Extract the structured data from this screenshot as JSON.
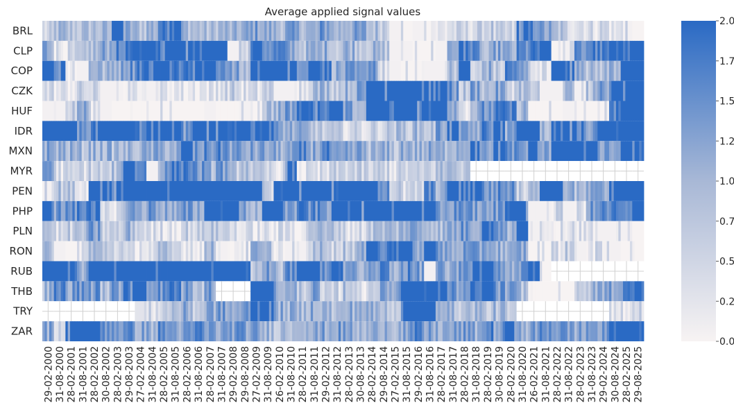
{
  "chart_data": {
    "type": "heatmap",
    "title": "Average applied signal values",
    "xlabel": "",
    "ylabel": "",
    "rows": [
      "BRL",
      "CLP",
      "COP",
      "CZK",
      "HUF",
      "IDR",
      "MXN",
      "MYR",
      "PEN",
      "PHP",
      "PLN",
      "RON",
      "RUB",
      "THB",
      "TRY",
      "ZAR"
    ],
    "x_tick_labels": [
      "29-02-2000",
      "31-08-2000",
      "28-02-2001",
      "31-08-2001",
      "28-02-2002",
      "30-08-2002",
      "28-02-2003",
      "29-08-2003",
      "27-02-2004",
      "31-08-2004",
      "28-02-2005",
      "31-08-2005",
      "28-02-2006",
      "31-08-2006",
      "28-02-2007",
      "31-08-2007",
      "29-02-2008",
      "29-08-2008",
      "27-02-2009",
      "31-08-2009",
      "26-02-2010",
      "31-08-2010",
      "28-02-2011",
      "31-08-2011",
      "29-02-2012",
      "31-08-2012",
      "28-02-2013",
      "30-08-2013",
      "28-02-2014",
      "29-08-2014",
      "27-02-2015",
      "31-08-2015",
      "29-02-2016",
      "31-08-2016",
      "28-02-2017",
      "31-08-2017",
      "28-02-2018",
      "31-08-2018",
      "28-02-2019",
      "30-08-2019",
      "28-02-2020",
      "31-08-2020",
      "26-02-2021",
      "31-08-2021",
      "28-02-2022",
      "31-08-2022",
      "28-02-2023",
      "31-08-2023",
      "29-02-2024",
      "30-08-2024",
      "28-02-2025",
      "29-08-2025"
    ],
    "period_values": {
      "BRL": [
        0.4,
        0.9,
        0.8,
        0.8,
        0.9,
        0.9,
        1.9,
        1.1,
        0.9,
        1.1,
        1.8,
        1.9,
        1.0,
        0.9,
        0.8,
        1.0,
        0.9,
        1.1,
        1.3,
        1.1,
        1.0,
        1.2,
        1.1,
        1.0,
        1.4,
        1.0,
        1.2,
        1.2,
        0.9,
        0.8,
        0.1,
        0.05,
        0.1,
        0.2,
        0.2,
        0.4,
        0.4,
        0.5,
        0.7,
        0.4,
        0.4,
        1.9,
        1.6,
        1.2,
        0.8,
        0.5,
        0.5,
        0.4,
        0.5,
        0.2,
        0.1,
        0.05
      ],
      "CLP": [
        1.3,
        0.3,
        0.3,
        0.5,
        0.9,
        1.2,
        1.5,
        1.8,
        1.9,
        1.9,
        1.9,
        1.9,
        1.9,
        1.9,
        1.9,
        1.9,
        0.1,
        0.6,
        1.9,
        1.6,
        1.6,
        1.2,
        0.9,
        1.0,
        1.1,
        0.8,
        1.1,
        0.9,
        0.9,
        0.8,
        0.1,
        0.1,
        0.05,
        0.05,
        0.1,
        1.2,
        1.9,
        1.4,
        0.7,
        1.2,
        1.0,
        1.5,
        1.7,
        1.9,
        0.05,
        0.1,
        1.4,
        1.7,
        1.6,
        1.9,
        1.8,
        1.9
      ],
      "COP": [
        1.9,
        1.9,
        0.3,
        0.1,
        1.2,
        0.9,
        1.2,
        1.5,
        1.8,
        1.9,
        1.9,
        1.9,
        1.7,
        1.9,
        1.9,
        1.7,
        1.2,
        0.9,
        1.9,
        1.9,
        1.9,
        1.9,
        1.7,
        1.9,
        1.8,
        1.1,
        1.2,
        1.1,
        1.6,
        0.4,
        0.1,
        0.05,
        0.05,
        0.1,
        0.1,
        0.9,
        1.9,
        0.4,
        1.1,
        0.6,
        1.7,
        1.2,
        0.5,
        0.1,
        1.9,
        1.9,
        1.4,
        0.8,
        0.9,
        1.1,
        1.9,
        1.9
      ],
      "CZK": [
        0.4,
        0.2,
        0.3,
        0.5,
        0.4,
        0.1,
        0.1,
        0.2,
        0.1,
        0.1,
        0.2,
        0.3,
        0.2,
        0.3,
        0.2,
        0.5,
        0.6,
        0.3,
        0.3,
        0.6,
        0.1,
        0.1,
        0.4,
        0.9,
        1.0,
        0.8,
        1.0,
        1.2,
        1.9,
        1.9,
        1.9,
        1.9,
        1.9,
        1.9,
        1.9,
        1.4,
        0.7,
        1.3,
        0.9,
        1.2,
        0.6,
        0.9,
        0.6,
        0.1,
        0.1,
        0.9,
        0.1,
        0.8,
        1.4,
        1.9,
        1.9,
        1.9
      ],
      "HUF": [
        0.1,
        0.1,
        0.6,
        1.2,
        0.3,
        0.1,
        0.05,
        0.05,
        0.05,
        0.05,
        0.05,
        0.05,
        0.05,
        0.05,
        0.1,
        0.05,
        0.05,
        0.1,
        0.2,
        0.9,
        1.1,
        1.3,
        1.9,
        1.9,
        1.8,
        1.9,
        1.2,
        1.0,
        1.9,
        1.9,
        1.9,
        1.9,
        1.9,
        1.9,
        1.9,
        1.4,
        0.4,
        1.0,
        1.4,
        1.7,
        1.6,
        1.0,
        0.05,
        0.05,
        0.05,
        0.1,
        0.05,
        0.05,
        0.2,
        1.8,
        1.9,
        1.9
      ],
      "IDR": [
        1.9,
        1.9,
        1.9,
        1.5,
        1.9,
        1.9,
        1.9,
        1.9,
        1.6,
        1.9,
        1.9,
        1.9,
        1.4,
        1.9,
        1.9,
        1.9,
        1.7,
        1.9,
        1.9,
        1.9,
        1.2,
        1.1,
        1.0,
        0.8,
        0.6,
        0.5,
        0.5,
        0.4,
        0.5,
        0.6,
        0.8,
        0.8,
        0.9,
        0.8,
        1.3,
        1.9,
        1.1,
        1.2,
        1.6,
        1.9,
        1.2,
        1.9,
        1.9,
        0.9,
        1.9,
        1.9,
        1.8,
        1.4,
        1.9,
        1.9,
        1.9,
        1.9
      ],
      "MXN": [
        1.2,
        1.1,
        1.0,
        0.9,
        1.0,
        1.0,
        0.9,
        0.9,
        1.0,
        1.1,
        1.1,
        1.1,
        1.9,
        1.4,
        1.5,
        1.6,
        1.3,
        1.2,
        1.2,
        1.2,
        1.1,
        1.1,
        1.5,
        1.2,
        1.6,
        1.0,
        1.1,
        1.2,
        0.9,
        1.0,
        0.8,
        1.2,
        1.0,
        1.1,
        1.0,
        1.2,
        1.3,
        1.9,
        1.1,
        1.9,
        1.5,
        1.3,
        1.9,
        1.1,
        1.9,
        1.9,
        1.9,
        1.9,
        1.4,
        1.3,
        1.9,
        1.8
      ],
      "MYR": [
        1.5,
        0.4,
        0.3,
        0.5,
        0.6,
        0.5,
        0.8,
        1.9,
        1.7,
        0.1,
        1.3,
        1.8,
        1.8,
        1.4,
        1.0,
        1.4,
        0.7,
        1.0,
        0.5,
        0.4,
        0.3,
        1.9,
        0.2,
        0.2,
        0.3,
        0.5,
        0.6,
        0.5,
        0.4,
        0.6,
        0.4,
        0.5,
        0.4,
        0.6,
        0.8,
        1.0,
        0.7,
        null,
        null,
        null,
        null,
        null,
        null,
        null,
        null,
        null,
        null,
        null,
        null,
        null,
        null,
        null
      ],
      "PEN": [
        0.1,
        0.8,
        0.7,
        0.3,
        1.9,
        1.9,
        1.9,
        1.9,
        1.9,
        1.9,
        1.9,
        1.9,
        1.9,
        1.9,
        1.9,
        1.9,
        1.9,
        1.9,
        1.9,
        0.6,
        1.9,
        1.9,
        1.9,
        1.9,
        1.9,
        1.9,
        1.9,
        1.9,
        1.9,
        1.7,
        0.7,
        0.3,
        0.5,
        1.5,
        1.1,
        1.9,
        1.6,
        1.9,
        1.4,
        1.5,
        1.5,
        0.6,
        1.2,
        1.9,
        1.9,
        1.2,
        0.8,
        1.1,
        1.1,
        1.9,
        1.9,
        1.9
      ],
      "PHP": [
        1.9,
        1.4,
        1.5,
        1.6,
        1.9,
        0.2,
        0.4,
        1.3,
        1.2,
        1.4,
        1.2,
        1.0,
        1.3,
        1.2,
        1.9,
        1.9,
        1.9,
        1.2,
        1.0,
        1.9,
        1.9,
        1.3,
        1.7,
        1.5,
        1.4,
        1.9,
        1.9,
        1.9,
        1.9,
        1.9,
        1.9,
        1.9,
        1.9,
        1.9,
        1.2,
        1.4,
        1.6,
        1.3,
        1.1,
        1.4,
        1.9,
        1.9,
        0.1,
        0.1,
        0.4,
        0.1,
        0.3,
        1.3,
        1.5,
        1.6,
        1.4,
        1.9
      ],
      "PLN": [
        0.9,
        0.4,
        0.6,
        0.8,
        1.3,
        0.6,
        0.5,
        1.0,
        0.6,
        0.3,
        0.4,
        0.3,
        0.6,
        0.5,
        0.8,
        0.6,
        0.5,
        0.2,
        0.3,
        0.2,
        0.3,
        0.4,
        0.3,
        1.0,
        0.8,
        0.8,
        0.4,
        0.4,
        0.8,
        0.9,
        0.9,
        1.2,
        1.2,
        1.1,
        0.9,
        1.2,
        1.4,
        1.3,
        1.9,
        1.6,
        1.0,
        1.9,
        0.1,
        0.4,
        0.2,
        0.5,
        0.3,
        0.2,
        0.1,
        0.1,
        0.1,
        0.05
      ],
      "RON": [
        0.8,
        0.1,
        0.05,
        0.4,
        0.9,
        0.8,
        0.6,
        0.2,
        0.4,
        0.3,
        0.7,
        0.5,
        0.4,
        0.3,
        0.9,
        0.1,
        0.2,
        0.3,
        1.0,
        0.8,
        0.2,
        0.1,
        0.1,
        0.7,
        1.0,
        0.6,
        0.8,
        1.0,
        1.9,
        1.6,
        1.9,
        1.9,
        1.2,
        1.9,
        1.3,
        1.1,
        1.3,
        1.2,
        1.4,
        1.1,
        0.9,
        1.2,
        0.05,
        0.05,
        0.4,
        0.6,
        0.1,
        0.4,
        0.2,
        0.1,
        0.05,
        0.05
      ],
      "RUB": [
        1.9,
        1.9,
        1.9,
        1.2,
        1.9,
        1.9,
        1.9,
        1.9,
        1.9,
        1.9,
        1.9,
        1.9,
        1.9,
        1.9,
        1.9,
        1.9,
        1.9,
        1.9,
        0.8,
        1.4,
        0.9,
        1.6,
        1.9,
        1.9,
        1.4,
        1.9,
        1.4,
        1.0,
        1.2,
        1.6,
        1.1,
        1.5,
        1.3,
        0.1,
        1.3,
        1.0,
        1.6,
        1.9,
        1.9,
        1.3,
        1.1,
        1.5,
        1.9,
        0.05,
        null,
        null,
        null,
        null,
        null,
        null,
        null,
        null
      ],
      "THB": [
        1.0,
        1.6,
        1.3,
        1.5,
        1.4,
        0.9,
        1.3,
        1.9,
        1.9,
        1.2,
        1.5,
        1.7,
        1.3,
        0.8,
        1.3,
        null,
        null,
        null,
        1.9,
        1.9,
        1.2,
        1.0,
        0.8,
        1.2,
        0.3,
        0.5,
        0.9,
        0.3,
        0.7,
        1.1,
        1.3,
        1.9,
        1.9,
        1.9,
        1.9,
        1.4,
        1.3,
        1.6,
        1.9,
        1.4,
        1.2,
        0.9,
        0.05,
        0.05,
        0.05,
        0.05,
        0.4,
        0.9,
        1.2,
        1.3,
        1.6,
        1.9
      ],
      "TRY": [
        null,
        null,
        null,
        null,
        null,
        null,
        null,
        null,
        0.2,
        0.4,
        0.6,
        0.9,
        1.1,
        0.7,
        1.2,
        1.3,
        1.1,
        1.3,
        1.9,
        1.9,
        1.1,
        1.0,
        0.9,
        1.2,
        1.0,
        0.8,
        1.1,
        1.2,
        1.0,
        0.9,
        0.8,
        1.9,
        1.9,
        1.9,
        1.4,
        0.9,
        0.8,
        1.0,
        0.7,
        0.9,
        0.5,
        null,
        null,
        null,
        null,
        null,
        null,
        null,
        null,
        0.2,
        0.4,
        0.6
      ],
      "ZAR": [
        1.2,
        0.6,
        1.9,
        1.9,
        1.9,
        1.6,
        1.5,
        1.4,
        1.2,
        1.1,
        1.5,
        1.3,
        1.2,
        1.6,
        1.3,
        1.2,
        1.4,
        1.3,
        1.2,
        1.0,
        0.9,
        1.0,
        1.3,
        1.1,
        1.2,
        1.3,
        1.2,
        0.9,
        1.0,
        1.3,
        1.1,
        1.2,
        1.5,
        1.2,
        1.1,
        1.2,
        1.3,
        1.1,
        1.6,
        1.3,
        1.9,
        1.1,
        1.2,
        1.6,
        1.5,
        1.3,
        1.2,
        1.4,
        1.2,
        1.9,
        1.9,
        1.9
      ]
    },
    "colorbar": {
      "vmin": 0,
      "vmax": 2,
      "tick_labels": [
        "0.00",
        "0.25",
        "0.50",
        "0.75",
        "1.00",
        "1.25",
        "1.50",
        "1.75",
        "2.00"
      ],
      "low_color": "#f7f3f3",
      "mid_color": "#a8b8d6",
      "high_color": "#2a6ac4"
    },
    "missing_color": "#ffffff",
    "missing_grid_color": "#d0d0d0"
  }
}
